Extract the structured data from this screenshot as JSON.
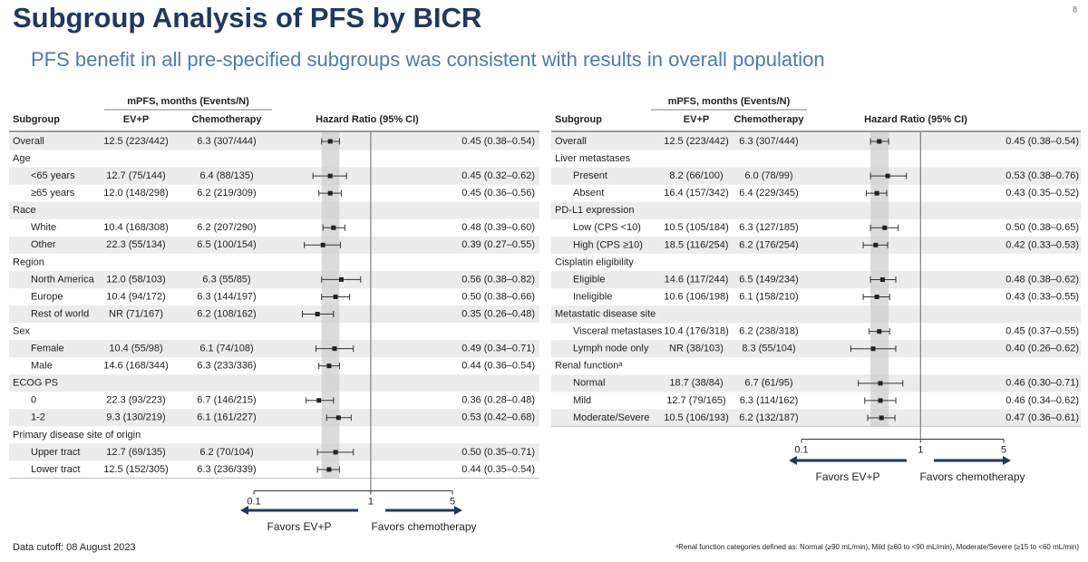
{
  "page": {
    "title": "Subgroup Analysis of PFS by BICR",
    "subtitle": "PFS benefit in all pre-specified subgroups was consistent with results in overall population",
    "page_number": "8",
    "footnote_left": "Data cutoff: 08 August 2023",
    "footnote_right": "ᵃRenal function categories defined as: Normal (≥90 mL/min), Mild (≥60 to <90 mL/min), Moderate/Severe (≥15 to <60 mL/min)"
  },
  "chart_data": [
    {
      "type": "forest",
      "column_group": "mPFS, months (Events/N)",
      "columns": [
        "Subgroup",
        "EV+P",
        "Chemotherapy",
        "Hazard Ratio (95% CI)"
      ],
      "log_scale": true,
      "xlim": [
        0.1,
        5
      ],
      "xticks": [
        0.1,
        1,
        5
      ],
      "reference_line": 1,
      "favors_left": "Favors EV+P",
      "favors_right": "Favors chemotherapy",
      "groups": [
        {
          "rows": [
            {
              "label": "Overall",
              "ev_p": "12.5 (223/442)",
              "chemo": "6.3 (307/444)",
              "hr": 0.45,
              "lo": 0.38,
              "hi": 0.54,
              "hr_label": "0.45 (0.38–0.54)"
            }
          ]
        },
        {
          "name": "Age",
          "rows": [
            {
              "label": "<65 years",
              "ev_p": "12.7 (75/144)",
              "chemo": "6.4 (88/135)",
              "hr": 0.45,
              "lo": 0.32,
              "hi": 0.62,
              "hr_label": "0.45 (0.32–0.62)"
            },
            {
              "label": "≥65 years",
              "ev_p": "12.0 (148/298)",
              "chemo": "6.2 (219/309)",
              "hr": 0.45,
              "lo": 0.36,
              "hi": 0.56,
              "hr_label": "0.45 (0.36–0.56)"
            }
          ]
        },
        {
          "name": "Race",
          "rows": [
            {
              "label": "White",
              "ev_p": "10.4 (168/308)",
              "chemo": "6.2 (207/290)",
              "hr": 0.48,
              "lo": 0.39,
              "hi": 0.6,
              "hr_label": "0.48 (0.39–0.60)"
            },
            {
              "label": "Other",
              "ev_p": "22.3 (55/134)",
              "chemo": "6.5 (100/154)",
              "hr": 0.39,
              "lo": 0.27,
              "hi": 0.55,
              "hr_label": "0.39 (0.27–0.55)"
            }
          ]
        },
        {
          "name": "Region",
          "rows": [
            {
              "label": "North America",
              "ev_p": "12.0 (58/103)",
              "chemo": "6.3 (55/85)",
              "hr": 0.56,
              "lo": 0.38,
              "hi": 0.82,
              "hr_label": "0.56 (0.38–0.82)"
            },
            {
              "label": "Europe",
              "ev_p": "10.4 (94/172)",
              "chemo": "6.3 (144/197)",
              "hr": 0.5,
              "lo": 0.38,
              "hi": 0.66,
              "hr_label": "0.50 (0.38–0.66)"
            },
            {
              "label": "Rest of world",
              "ev_p": "NR (71/167)",
              "chemo": "6.2 (108/162)",
              "hr": 0.35,
              "lo": 0.26,
              "hi": 0.48,
              "hr_label": "0.35 (0.26–0.48)"
            }
          ]
        },
        {
          "name": "Sex",
          "rows": [
            {
              "label": "Female",
              "ev_p": "10.4 (55/98)",
              "chemo": "6.1 (74/108)",
              "hr": 0.49,
              "lo": 0.34,
              "hi": 0.71,
              "hr_label": "0.49 (0.34–0.71)"
            },
            {
              "label": "Male",
              "ev_p": "14.6 (168/344)",
              "chemo": "6.3 (233/336)",
              "hr": 0.44,
              "lo": 0.36,
              "hi": 0.54,
              "hr_label": "0.44 (0.36–0.54)"
            }
          ]
        },
        {
          "name": "ECOG PS",
          "rows": [
            {
              "label": "0",
              "ev_p": "22.3 (93/223)",
              "chemo": "6.7 (146/215)",
              "hr": 0.36,
              "lo": 0.28,
              "hi": 0.48,
              "hr_label": "0.36 (0.28–0.48)"
            },
            {
              "label": "1-2",
              "ev_p": "9.3 (130/219)",
              "chemo": "6.1 (161/227)",
              "hr": 0.53,
              "lo": 0.42,
              "hi": 0.68,
              "hr_label": "0.53 (0.42–0.68)"
            }
          ]
        },
        {
          "name": "Primary disease site of origin",
          "rows": [
            {
              "label": "Upper tract",
              "ev_p": "12.7 (69/135)",
              "chemo": "6.2 (70/104)",
              "hr": 0.5,
              "lo": 0.35,
              "hi": 0.71,
              "hr_label": "0.50 (0.35–0.71)"
            },
            {
              "label": "Lower tract",
              "ev_p": "12.5 (152/305)",
              "chemo": "6.3 (236/339)",
              "hr": 0.44,
              "lo": 0.35,
              "hi": 0.54,
              "hr_label": "0.44 (0.35–0.54)"
            }
          ]
        }
      ]
    },
    {
      "type": "forest",
      "column_group": "mPFS, months (Events/N)",
      "columns": [
        "Subgroup",
        "EV+P",
        "Chemotherapy",
        "Hazard Ratio (95% CI)"
      ],
      "log_scale": true,
      "xlim": [
        0.1,
        5
      ],
      "xticks": [
        0.1,
        1,
        5
      ],
      "reference_line": 1,
      "favors_left": "Favors EV+P",
      "favors_right": "Favors chemotherapy",
      "groups": [
        {
          "rows": [
            {
              "label": "Overall",
              "ev_p": "12.5 (223/442)",
              "chemo": "6.3 (307/444)",
              "hr": 0.45,
              "lo": 0.38,
              "hi": 0.54,
              "hr_label": "0.45 (0.38–0.54)"
            }
          ]
        },
        {
          "name": "Liver metastases",
          "rows": [
            {
              "label": "Present",
              "ev_p": "8.2 (66/100)",
              "chemo": "6.0 (78/99)",
              "hr": 0.53,
              "lo": 0.38,
              "hi": 0.76,
              "hr_label": "0.53 (0.38–0.76)"
            },
            {
              "label": "Absent",
              "ev_p": "16.4 (157/342)",
              "chemo": "6.4 (229/345)",
              "hr": 0.43,
              "lo": 0.35,
              "hi": 0.52,
              "hr_label": "0.43 (0.35–0.52)"
            }
          ]
        },
        {
          "name": "PD-L1 expression",
          "rows": [
            {
              "label": "Low (CPS <10)",
              "ev_p": "10.5 (105/184)",
              "chemo": "6.3 (127/185)",
              "hr": 0.5,
              "lo": 0.38,
              "hi": 0.65,
              "hr_label": "0.50 (0.38–0.65)"
            },
            {
              "label": "High (CPS ≥10)",
              "ev_p": "18.5 (116/254)",
              "chemo": "6.2 (176/254)",
              "hr": 0.42,
              "lo": 0.33,
              "hi": 0.53,
              "hr_label": "0.42 (0.33–0.53)"
            }
          ]
        },
        {
          "name": "Cisplatin eligibility",
          "rows": [
            {
              "label": "Eligible",
              "ev_p": "14.6 (117/244)",
              "chemo": "6.5 (149/234)",
              "hr": 0.48,
              "lo": 0.38,
              "hi": 0.62,
              "hr_label": "0.48 (0.38–0.62)"
            },
            {
              "label": "Ineligible",
              "ev_p": "10.6 (106/198)",
              "chemo": "6.1 (158/210)",
              "hr": 0.43,
              "lo": 0.33,
              "hi": 0.55,
              "hr_label": "0.43 (0.33–0.55)"
            }
          ]
        },
        {
          "name": "Metastatic disease site",
          "rows": [
            {
              "label": "Visceral metastases",
              "ev_p": "10.4 (176/318)",
              "chemo": "6.2 (238/318)",
              "hr": 0.45,
              "lo": 0.37,
              "hi": 0.55,
              "hr_label": "0.45 (0.37–0.55)"
            },
            {
              "label": "Lymph node only",
              "ev_p": "NR (38/103)",
              "chemo": "8.3 (55/104)",
              "hr": 0.4,
              "lo": 0.26,
              "hi": 0.62,
              "hr_label": "0.40 (0.26–0.62)"
            }
          ]
        },
        {
          "name": "Renal functionᵃ",
          "rows": [
            {
              "label": "Normal",
              "ev_p": "18.7 (38/84)",
              "chemo": "6.7 (61/95)",
              "hr": 0.46,
              "lo": 0.3,
              "hi": 0.71,
              "hr_label": "0.46 (0.30–0.71)"
            },
            {
              "label": "Mild",
              "ev_p": "12.7 (79/165)",
              "chemo": "6.3 (114/162)",
              "hr": 0.46,
              "lo": 0.34,
              "hi": 0.62,
              "hr_label": "0.46 (0.34–0.62)"
            },
            {
              "label": "Moderate/Severe",
              "ev_p": "10.5 (106/193)",
              "chemo": "6.2 (132/187)",
              "hr": 0.47,
              "lo": 0.36,
              "hi": 0.61,
              "hr_label": "0.47 (0.36–0.61)"
            }
          ]
        }
      ]
    }
  ]
}
